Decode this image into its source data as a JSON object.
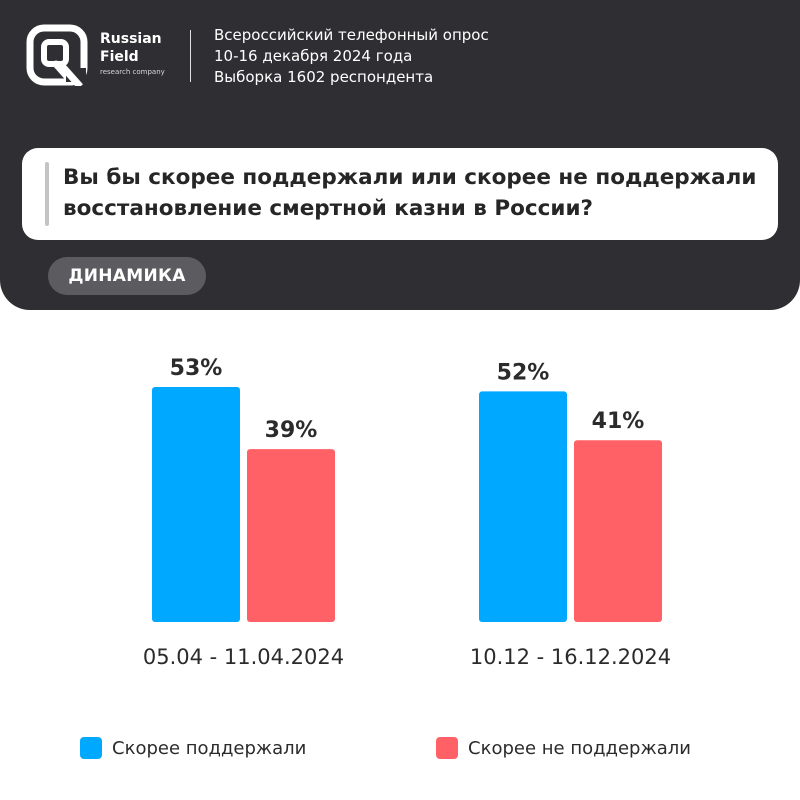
{
  "brand": {
    "name_line1": "Russian",
    "name_line2": "Field",
    "tagline": "research company"
  },
  "survey_info": {
    "line1": "Всероссийский телефонный опрос",
    "line2": "10-16 декабря 2024 года",
    "line3": "Выборка 1602 респондента"
  },
  "question": "Вы бы скорее поддержали или скорее не поддержали восстановление смертной казни в России?",
  "section_label": "ДИНАМИКА",
  "colors": {
    "header_bg": "#2f2f33",
    "support": "#00a9ff",
    "not_support": "#ff6166"
  },
  "chart_data": {
    "type": "bar",
    "categories": [
      "05.04 - 11.04.2024",
      "10.12 - 16.12.2024"
    ],
    "series": [
      {
        "name": "Скорее поддержали",
        "values": [
          53,
          52
        ],
        "labels": [
          "53%",
          "52%"
        ],
        "color": "#00a9ff"
      },
      {
        "name": "Скорее не поддержали",
        "values": [
          39,
          41
        ],
        "labels": [
          "39%",
          "41%"
        ],
        "color": "#ff6166"
      }
    ],
    "unit": "%",
    "ylim": [
      0,
      53
    ],
    "grid": false,
    "legend_position": "bottom"
  }
}
